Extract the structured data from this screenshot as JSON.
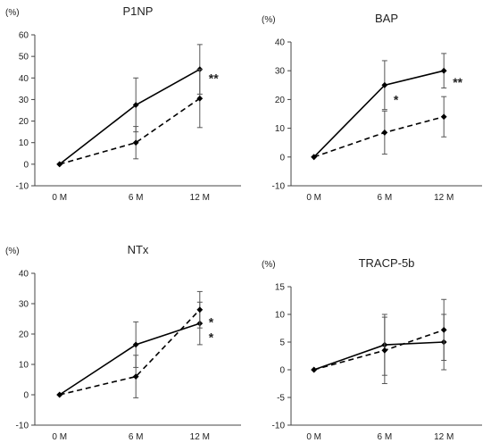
{
  "colors": {
    "line": "#000000",
    "text": "#222222"
  },
  "chart_data": [
    {
      "type": "line",
      "title": "P1NP",
      "ylabel": "(%)",
      "categories": [
        "0 M",
        "6 M",
        "12 M"
      ],
      "ylim": [
        -10,
        60
      ],
      "yticks": [
        -10,
        0,
        10,
        20,
        30,
        40,
        50,
        60
      ],
      "series": [
        {
          "style": "solid",
          "values": [
            0,
            27.5,
            44
          ],
          "err": [
            0,
            12.5,
            11.5
          ]
        },
        {
          "style": "dashed",
          "values": [
            0,
            10,
            30.5
          ],
          "err": [
            0,
            7.5,
            13.5
          ]
        }
      ],
      "annotations": [
        {
          "text": "**",
          "category": "12 M",
          "y": 40
        }
      ]
    },
    {
      "type": "line",
      "title": "BAP",
      "ylabel": "(%)",
      "categories": [
        "0 M",
        "6 M",
        "12 M"
      ],
      "ylim": [
        -10,
        40
      ],
      "yticks": [
        -10,
        0,
        10,
        20,
        30,
        40
      ],
      "series": [
        {
          "style": "solid",
          "values": [
            0,
            25,
            30
          ],
          "err": [
            0,
            8.5,
            6
          ]
        },
        {
          "style": "dashed",
          "values": [
            0,
            8.5,
            14
          ],
          "err": [
            0,
            7.5,
            7
          ]
        }
      ],
      "annotations": [
        {
          "text": "*",
          "category": "6 M",
          "y": 20
        },
        {
          "text": "**",
          "category": "12 M",
          "y": 26
        }
      ]
    },
    {
      "type": "line",
      "title": "NTx",
      "ylabel": "(%)",
      "categories": [
        "0 M",
        "6 M",
        "12 M"
      ],
      "ylim": [
        -10,
        40
      ],
      "yticks": [
        -10,
        0,
        10,
        20,
        30,
        40
      ],
      "series": [
        {
          "style": "solid",
          "values": [
            0,
            16.5,
            23.5
          ],
          "err": [
            0,
            7.5,
            7
          ]
        },
        {
          "style": "dashed",
          "values": [
            0,
            6,
            28
          ],
          "err": [
            0,
            7,
            6
          ]
        }
      ],
      "annotations": [
        {
          "text": "*",
          "category": "12 M",
          "y": 24
        },
        {
          "text": "*",
          "category": "12 M",
          "y": 19
        }
      ]
    },
    {
      "type": "line",
      "title": "TRACP-5b",
      "ylabel": "(%)",
      "categories": [
        "0 M",
        "6 M",
        "12 M"
      ],
      "ylim": [
        -10,
        15
      ],
      "yticks": [
        -10,
        -5,
        0,
        5,
        10,
        15
      ],
      "series": [
        {
          "style": "solid",
          "values": [
            0,
            4.5,
            5
          ],
          "err": [
            0,
            5.5,
            5
          ]
        },
        {
          "style": "dashed",
          "values": [
            0,
            3.5,
            7.2
          ],
          "err": [
            0,
            6,
            5.5
          ]
        }
      ],
      "annotations": []
    }
  ]
}
